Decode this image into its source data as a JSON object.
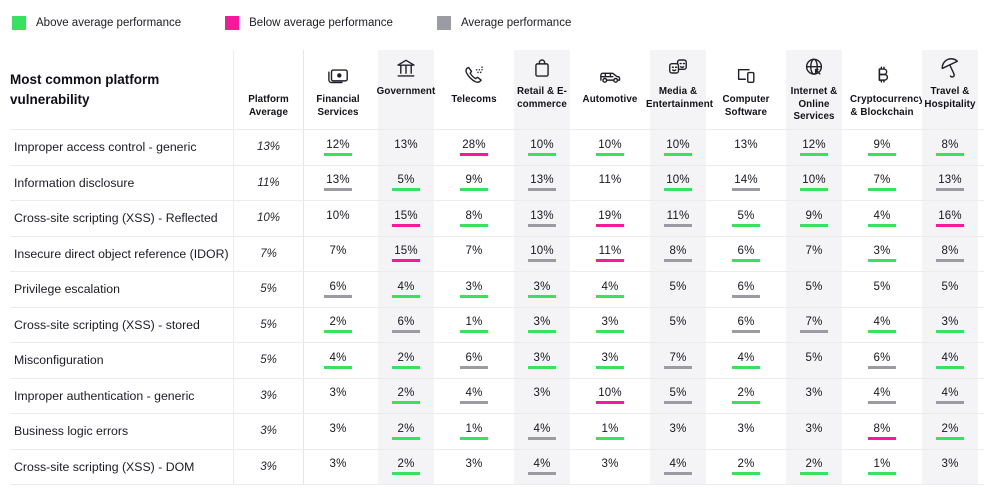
{
  "colors": {
    "above": "#38e25f",
    "below": "#f7189b",
    "average": "#9b9ba3",
    "shaded_column": "#f4f4f6"
  },
  "legend": {
    "items": [
      {
        "key": "above",
        "label": "Above average performance"
      },
      {
        "key": "below",
        "label": "Below average performance"
      },
      {
        "key": "average",
        "label": "Average performance"
      }
    ]
  },
  "chart_data": {
    "type": "table",
    "title": "Most common platform vulnerability",
    "legend": [
      "Above average performance",
      "Below average performance",
      "Average performance"
    ],
    "columns": [
      {
        "label": "Platform Average",
        "icon": null,
        "shaded": false
      },
      {
        "label": "Financial Services",
        "icon": "banknote-icon",
        "shaded": false
      },
      {
        "label": "Government",
        "icon": "bank-icon",
        "shaded": true
      },
      {
        "label": "Telecoms",
        "icon": "phone-icon",
        "shaded": false
      },
      {
        "label": "Retail & E-commerce",
        "icon": "shopping-bag-icon",
        "shaded": true
      },
      {
        "label": "Automotive",
        "icon": "vehicle-icon",
        "shaded": false
      },
      {
        "label": "Media & Entertainment",
        "icon": "theater-masks-icon",
        "shaded": true
      },
      {
        "label": "Computer Software",
        "icon": "devices-icon",
        "shaded": false
      },
      {
        "label": "Internet & Online Services",
        "icon": "globe-cursor-icon",
        "shaded": true
      },
      {
        "label": "Cryptocurrency & Blockchain",
        "icon": "bitcoin-icon",
        "shaded": false
      },
      {
        "label": "Travel & Hospitality",
        "icon": "umbrella-icon",
        "shaded": true
      }
    ],
    "rows": [
      {
        "label": "Improper access control - generic",
        "cells": [
          {
            "value": "13%",
            "status": "platform-average"
          },
          {
            "value": "12%",
            "status": "above"
          },
          {
            "value": "13%",
            "status": "none"
          },
          {
            "value": "28%",
            "status": "below"
          },
          {
            "value": "10%",
            "status": "above"
          },
          {
            "value": "10%",
            "status": "above"
          },
          {
            "value": "10%",
            "status": "above"
          },
          {
            "value": "13%",
            "status": "none"
          },
          {
            "value": "12%",
            "status": "above"
          },
          {
            "value": "9%",
            "status": "above"
          },
          {
            "value": "8%",
            "status": "above"
          }
        ]
      },
      {
        "label": "Information disclosure",
        "cells": [
          {
            "value": "11%",
            "status": "platform-average"
          },
          {
            "value": "13%",
            "status": "average"
          },
          {
            "value": "5%",
            "status": "above"
          },
          {
            "value": "9%",
            "status": "above"
          },
          {
            "value": "13%",
            "status": "average"
          },
          {
            "value": "11%",
            "status": "none"
          },
          {
            "value": "10%",
            "status": "above"
          },
          {
            "value": "14%",
            "status": "average"
          },
          {
            "value": "10%",
            "status": "above"
          },
          {
            "value": "7%",
            "status": "above"
          },
          {
            "value": "13%",
            "status": "average"
          }
        ]
      },
      {
        "label": "Cross-site scripting (XSS) - Reflected",
        "cells": [
          {
            "value": "10%",
            "status": "platform-average"
          },
          {
            "value": "10%",
            "status": "none"
          },
          {
            "value": "15%",
            "status": "below"
          },
          {
            "value": "8%",
            "status": "above"
          },
          {
            "value": "13%",
            "status": "average"
          },
          {
            "value": "19%",
            "status": "below"
          },
          {
            "value": "11%",
            "status": "average"
          },
          {
            "value": "5%",
            "status": "above"
          },
          {
            "value": "9%",
            "status": "above"
          },
          {
            "value": "4%",
            "status": "above"
          },
          {
            "value": "16%",
            "status": "below"
          }
        ]
      },
      {
        "label": "Insecure direct object reference (IDOR)",
        "cells": [
          {
            "value": "7%",
            "status": "platform-average"
          },
          {
            "value": "7%",
            "status": "none"
          },
          {
            "value": "15%",
            "status": "below"
          },
          {
            "value": "7%",
            "status": "none"
          },
          {
            "value": "10%",
            "status": "average"
          },
          {
            "value": "11%",
            "status": "below"
          },
          {
            "value": "8%",
            "status": "average"
          },
          {
            "value": "6%",
            "status": "above"
          },
          {
            "value": "7%",
            "status": "none"
          },
          {
            "value": "3%",
            "status": "above"
          },
          {
            "value": "8%",
            "status": "average"
          }
        ]
      },
      {
        "label": "Privilege escalation",
        "cells": [
          {
            "value": "5%",
            "status": "platform-average"
          },
          {
            "value": "6%",
            "status": "average"
          },
          {
            "value": "4%",
            "status": "above"
          },
          {
            "value": "3%",
            "status": "above"
          },
          {
            "value": "3%",
            "status": "above"
          },
          {
            "value": "4%",
            "status": "above"
          },
          {
            "value": "5%",
            "status": "none"
          },
          {
            "value": "6%",
            "status": "average"
          },
          {
            "value": "5%",
            "status": "none"
          },
          {
            "value": "5%",
            "status": "none"
          },
          {
            "value": "5%",
            "status": "none"
          }
        ]
      },
      {
        "label": "Cross-site scripting (XSS) - stored",
        "cells": [
          {
            "value": "5%",
            "status": "platform-average"
          },
          {
            "value": "2%",
            "status": "above"
          },
          {
            "value": "6%",
            "status": "average"
          },
          {
            "value": "1%",
            "status": "above"
          },
          {
            "value": "3%",
            "status": "above"
          },
          {
            "value": "3%",
            "status": "above"
          },
          {
            "value": "5%",
            "status": "none"
          },
          {
            "value": "6%",
            "status": "average"
          },
          {
            "value": "7%",
            "status": "average"
          },
          {
            "value": "4%",
            "status": "above"
          },
          {
            "value": "3%",
            "status": "above"
          }
        ]
      },
      {
        "label": "Misconfiguration",
        "cells": [
          {
            "value": "5%",
            "status": "platform-average"
          },
          {
            "value": "4%",
            "status": "above"
          },
          {
            "value": "2%",
            "status": "above"
          },
          {
            "value": "6%",
            "status": "average"
          },
          {
            "value": "3%",
            "status": "above"
          },
          {
            "value": "3%",
            "status": "above"
          },
          {
            "value": "7%",
            "status": "average"
          },
          {
            "value": "4%",
            "status": "above"
          },
          {
            "value": "5%",
            "status": "none"
          },
          {
            "value": "6%",
            "status": "average"
          },
          {
            "value": "4%",
            "status": "above"
          }
        ]
      },
      {
        "label": "Improper authentication - generic",
        "cells": [
          {
            "value": "3%",
            "status": "platform-average"
          },
          {
            "value": "3%",
            "status": "none"
          },
          {
            "value": "2%",
            "status": "above"
          },
          {
            "value": "4%",
            "status": "average"
          },
          {
            "value": "3%",
            "status": "none"
          },
          {
            "value": "10%",
            "status": "below"
          },
          {
            "value": "5%",
            "status": "average"
          },
          {
            "value": "2%",
            "status": "above"
          },
          {
            "value": "3%",
            "status": "none"
          },
          {
            "value": "4%",
            "status": "average"
          },
          {
            "value": "4%",
            "status": "average"
          }
        ]
      },
      {
        "label": "Business logic errors",
        "cells": [
          {
            "value": "3%",
            "status": "platform-average"
          },
          {
            "value": "3%",
            "status": "none"
          },
          {
            "value": "2%",
            "status": "above"
          },
          {
            "value": "1%",
            "status": "above"
          },
          {
            "value": "4%",
            "status": "average"
          },
          {
            "value": "1%",
            "status": "above"
          },
          {
            "value": "3%",
            "status": "none"
          },
          {
            "value": "3%",
            "status": "none"
          },
          {
            "value": "3%",
            "status": "none"
          },
          {
            "value": "8%",
            "status": "below"
          },
          {
            "value": "2%",
            "status": "above"
          }
        ]
      },
      {
        "label": "Cross-site scripting (XSS) - DOM",
        "cells": [
          {
            "value": "3%",
            "status": "platform-average"
          },
          {
            "value": "3%",
            "status": "none"
          },
          {
            "value": "2%",
            "status": "above"
          },
          {
            "value": "3%",
            "status": "none"
          },
          {
            "value": "4%",
            "status": "average"
          },
          {
            "value": "3%",
            "status": "none"
          },
          {
            "value": "4%",
            "status": "average"
          },
          {
            "value": "2%",
            "status": "above"
          },
          {
            "value": "2%",
            "status": "above"
          },
          {
            "value": "1%",
            "status": "above"
          },
          {
            "value": "3%",
            "status": "none"
          }
        ]
      }
    ]
  }
}
